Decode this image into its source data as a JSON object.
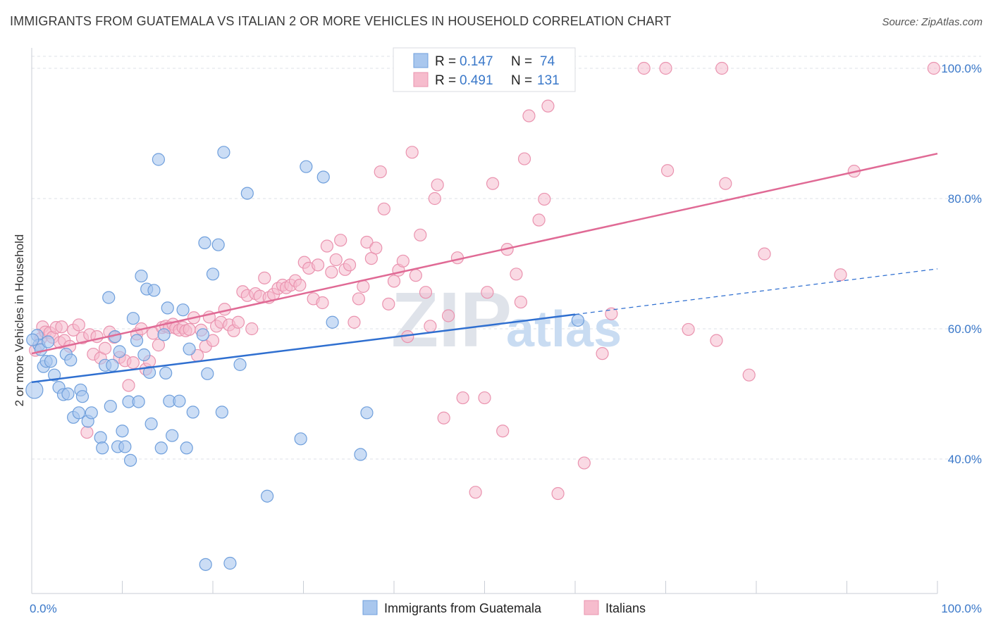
{
  "title": "IMMIGRANTS FROM GUATEMALA VS ITALIAN 2 OR MORE VEHICLES IN HOUSEHOLD CORRELATION CHART",
  "source": "Source: ZipAtlas.com",
  "watermark": {
    "zip": "ZIP",
    "atlas": "atlas"
  },
  "colors": {
    "blue_fill": "#a9c7ee",
    "blue_stroke": "#6f9fdc",
    "blue_line": "#2f6fd0",
    "pink_fill": "#f6bccd",
    "pink_stroke": "#ea93af",
    "pink_line": "#e06a95",
    "tick_text": "#3a78c9",
    "grid": "#dde1e7"
  },
  "legend": {
    "r_label": "R =",
    "n_label": "N =",
    "rows": [
      {
        "r": "0.147",
        "n": "74"
      },
      {
        "r": "0.491",
        "n": "131"
      }
    ]
  },
  "chart_data": {
    "type": "scatter",
    "title": "IMMIGRANTS FROM GUATEMALA VS ITALIAN 2 OR MORE VEHICLES IN HOUSEHOLD CORRELATION CHART",
    "xlabel": "",
    "ylabel": "2 or more Vehicles in Household",
    "xlim": [
      0,
      100
    ],
    "ylim": [
      20,
      102
    ],
    "x_ticks": [
      "0.0%",
      "100.0%"
    ],
    "y_ticks": [
      {
        "value": 40,
        "label": "40.0%"
      },
      {
        "value": 60,
        "label": "60.0%"
      },
      {
        "value": 80,
        "label": "80.0%"
      },
      {
        "value": 100,
        "label": "100.0%"
      }
    ],
    "grid": true,
    "legend_position": "top-center",
    "series": [
      {
        "name": "Immigrants from Guatemala",
        "color": "#a9c7ee",
        "trend": {
          "x0": 0,
          "y0": 51.8,
          "x1": 60,
          "y1": 62.2,
          "dash_to_x": 100,
          "dash_to_y": 69.2
        },
        "points": [
          [
            0.3,
            50.6
          ],
          [
            0.6,
            59
          ],
          [
            0.8,
            57.5
          ],
          [
            1.0,
            56.8
          ],
          [
            1.3,
            54.2
          ],
          [
            1.6,
            55.0
          ],
          [
            2.1,
            55.0
          ],
          [
            2.5,
            52.9
          ],
          [
            3.0,
            51.0
          ],
          [
            3.5,
            49.9
          ],
          [
            3.8,
            56.1
          ],
          [
            4.0,
            50.0
          ],
          [
            4.6,
            46.4
          ],
          [
            5.2,
            47.1
          ],
          [
            5.4,
            50.6
          ],
          [
            5.6,
            49.6
          ],
          [
            6.2,
            45.8
          ],
          [
            6.6,
            47.1
          ],
          [
            7.6,
            43.3
          ],
          [
            7.8,
            41.7
          ],
          [
            8.1,
            54.4
          ],
          [
            8.5,
            64.8
          ],
          [
            8.7,
            48.1
          ],
          [
            8.9,
            54.4
          ],
          [
            9.2,
            58.8
          ],
          [
            9.5,
            41.9
          ],
          [
            9.7,
            56.5
          ],
          [
            10.0,
            44.3
          ],
          [
            10.3,
            41.9
          ],
          [
            10.7,
            48.8
          ],
          [
            10.9,
            39.8
          ],
          [
            11.2,
            61.6
          ],
          [
            11.6,
            58.2
          ],
          [
            11.8,
            48.8
          ],
          [
            12.1,
            68.1
          ],
          [
            12.7,
            66.1
          ],
          [
            13.0,
            53.3
          ],
          [
            13.2,
            45.4
          ],
          [
            13.5,
            65.9
          ],
          [
            14.0,
            86.0
          ],
          [
            14.3,
            41.7
          ],
          [
            14.8,
            53.2
          ],
          [
            15.0,
            63.2
          ],
          [
            15.2,
            48.9
          ],
          [
            15.5,
            43.6
          ],
          [
            16.3,
            48.9
          ],
          [
            16.7,
            62.9
          ],
          [
            17.1,
            41.7
          ],
          [
            17.4,
            56.9
          ],
          [
            17.8,
            47.2
          ],
          [
            18.9,
            59.1
          ],
          [
            19.2,
            23.8
          ],
          [
            19.1,
            73.2
          ],
          [
            19.4,
            53.1
          ],
          [
            20.0,
            68.4
          ],
          [
            20.6,
            72.9
          ],
          [
            21.0,
            47.2
          ],
          [
            21.2,
            87.1
          ],
          [
            21.9,
            24.0
          ],
          [
            23.0,
            54.5
          ],
          [
            23.8,
            80.8
          ],
          [
            26.0,
            34.3
          ],
          [
            29.7,
            43.1
          ],
          [
            30.3,
            84.9
          ],
          [
            32.2,
            83.3
          ],
          [
            33.2,
            61.0
          ],
          [
            36.3,
            40.7
          ],
          [
            37.0,
            47.1
          ],
          [
            60.3,
            61.3
          ],
          [
            0.1,
            58.3
          ],
          [
            1.8,
            58.0
          ],
          [
            4.3,
            55.2
          ],
          [
            12.4,
            56.0
          ],
          [
            14.6,
            59.1
          ]
        ]
      },
      {
        "name": "Italians",
        "color": "#f6bccd",
        "trend": {
          "x0": 0,
          "y0": 56.2,
          "x1": 100,
          "y1": 86.9
        },
        "points": [
          [
            0.4,
            56.7
          ],
          [
            1.0,
            58.5
          ],
          [
            1.2,
            60.3
          ],
          [
            1.5,
            59.5
          ],
          [
            2.0,
            59.4
          ],
          [
            2.3,
            58.7
          ],
          [
            2.7,
            60.2
          ],
          [
            3.1,
            57.9
          ],
          [
            3.3,
            60.3
          ],
          [
            3.6,
            58.2
          ],
          [
            4.2,
            57.3
          ],
          [
            4.6,
            59.8
          ],
          [
            5.2,
            60.6
          ],
          [
            5.6,
            58.6
          ],
          [
            6.1,
            44.1
          ],
          [
            6.4,
            59.1
          ],
          [
            6.8,
            56.1
          ],
          [
            7.2,
            58.8
          ],
          [
            7.6,
            55.5
          ],
          [
            8.1,
            57.0
          ],
          [
            8.6,
            59.5
          ],
          [
            9.1,
            58.7
          ],
          [
            9.7,
            55.6
          ],
          [
            10.3,
            55.1
          ],
          [
            10.7,
            51.3
          ],
          [
            11.2,
            54.8
          ],
          [
            11.6,
            59.2
          ],
          [
            12.1,
            60.0
          ],
          [
            12.6,
            53.8
          ],
          [
            13.0,
            55.0
          ],
          [
            13.4,
            59.3
          ],
          [
            14.0,
            57.5
          ],
          [
            14.4,
            60.2
          ],
          [
            14.8,
            60.4
          ],
          [
            15.2,
            60.2
          ],
          [
            15.6,
            60.7
          ],
          [
            15.9,
            60.1
          ],
          [
            16.3,
            59.8
          ],
          [
            16.7,
            60.2
          ],
          [
            17.0,
            59.7
          ],
          [
            17.4,
            59.9
          ],
          [
            17.9,
            61.7
          ],
          [
            18.3,
            55.9
          ],
          [
            18.7,
            59.8
          ],
          [
            19.2,
            57.3
          ],
          [
            19.6,
            61.8
          ],
          [
            20.0,
            58.2
          ],
          [
            20.4,
            60.4
          ],
          [
            20.9,
            61.0
          ],
          [
            21.3,
            63.0
          ],
          [
            21.8,
            60.6
          ],
          [
            22.3,
            59.7
          ],
          [
            22.8,
            61.0
          ],
          [
            23.3,
            65.7
          ],
          [
            23.8,
            65.1
          ],
          [
            24.3,
            60.0
          ],
          [
            24.7,
            65.4
          ],
          [
            25.2,
            65.0
          ],
          [
            25.7,
            67.8
          ],
          [
            26.2,
            64.8
          ],
          [
            26.7,
            65.3
          ],
          [
            27.2,
            66.2
          ],
          [
            27.7,
            66.7
          ],
          [
            28.1,
            66.3
          ],
          [
            28.6,
            66.7
          ],
          [
            29.1,
            67.4
          ],
          [
            29.6,
            66.7
          ],
          [
            30.1,
            70.2
          ],
          [
            30.6,
            69.3
          ],
          [
            31.1,
            64.6
          ],
          [
            31.6,
            69.8
          ],
          [
            32.1,
            64.0
          ],
          [
            32.6,
            72.7
          ],
          [
            33.1,
            68.7
          ],
          [
            33.6,
            70.6
          ],
          [
            34.1,
            73.6
          ],
          [
            34.6,
            69.1
          ],
          [
            35.1,
            69.8
          ],
          [
            35.6,
            61.0
          ],
          [
            36.1,
            64.6
          ],
          [
            36.6,
            66.5
          ],
          [
            37.0,
            73.3
          ],
          [
            37.5,
            70.8
          ],
          [
            38.0,
            72.4
          ],
          [
            38.5,
            84.1
          ],
          [
            38.9,
            78.4
          ],
          [
            39.4,
            63.8
          ],
          [
            40.0,
            67.3
          ],
          [
            40.5,
            69.0
          ],
          [
            41.0,
            70.4
          ],
          [
            41.5,
            58.8
          ],
          [
            42.0,
            87.1
          ],
          [
            42.4,
            68.2
          ],
          [
            42.9,
            74.4
          ],
          [
            43.5,
            65.6
          ],
          [
            44.0,
            60.4
          ],
          [
            44.5,
            80.0
          ],
          [
            44.8,
            82.1
          ],
          [
            45.5,
            46.3
          ],
          [
            46.0,
            62.0
          ],
          [
            47.0,
            70.9
          ],
          [
            47.6,
            49.4
          ],
          [
            49.0,
            34.9
          ],
          [
            50.0,
            49.4
          ],
          [
            50.3,
            65.6
          ],
          [
            50.9,
            82.3
          ],
          [
            52.0,
            44.3
          ],
          [
            52.5,
            72.2
          ],
          [
            53.5,
            68.4
          ],
          [
            54.0,
            64.1
          ],
          [
            54.4,
            86.1
          ],
          [
            54.9,
            92.7
          ],
          [
            56.0,
            76.7
          ],
          [
            56.6,
            79.9
          ],
          [
            57.0,
            94.2
          ],
          [
            58.1,
            34.7
          ],
          [
            61.0,
            39.4
          ],
          [
            63.0,
            56.2
          ],
          [
            64.0,
            62.3
          ],
          [
            67.6,
            100.0
          ],
          [
            70.0,
            100.0
          ],
          [
            70.2,
            84.3
          ],
          [
            72.5,
            59.9
          ],
          [
            75.6,
            58.2
          ],
          [
            76.2,
            100.0
          ],
          [
            76.6,
            82.3
          ],
          [
            79.2,
            52.9
          ],
          [
            80.9,
            71.5
          ],
          [
            89.3,
            68.3
          ],
          [
            90.8,
            84.2
          ],
          [
            99.6,
            100.0
          ]
        ]
      }
    ]
  },
  "bottom_legend": [
    {
      "label": "Immigrants from Guatemala"
    },
    {
      "label": "Italians"
    }
  ]
}
